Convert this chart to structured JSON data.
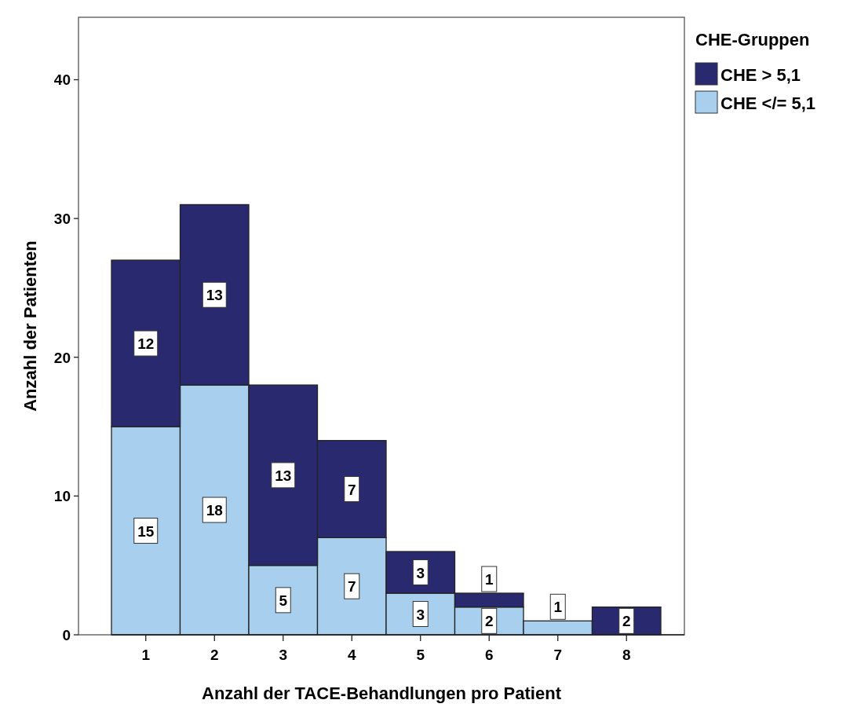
{
  "chart_data": {
    "type": "bar",
    "stacked": true,
    "xlabel": "Anzahl der TACE-Behandlungen pro Patient",
    "ylabel": "Anzahl der Patienten",
    "legend_title": "CHE-Gruppen",
    "legend": "top right",
    "categories": [
      "1",
      "2",
      "3",
      "4",
      "5",
      "6",
      "7",
      "8"
    ],
    "series": [
      {
        "name": "CHE </= 5,1",
        "color": "#a9cfee",
        "values": [
          15,
          18,
          5,
          7,
          3,
          2,
          1,
          0
        ],
        "value_labels": [
          "15",
          "18",
          "5",
          "7",
          "3",
          "2",
          "1",
          null
        ]
      },
      {
        "name": "CHE > 5,1",
        "color": "#29296f",
        "values": [
          12,
          13,
          13,
          7,
          3,
          1,
          0,
          2
        ],
        "value_labels": [
          "12",
          "13",
          "13",
          "7",
          "3",
          "1",
          null,
          "2"
        ]
      }
    ],
    "ylim": [
      0,
      44.5
    ],
    "yticks": [
      0,
      10,
      20,
      30,
      40
    ]
  }
}
